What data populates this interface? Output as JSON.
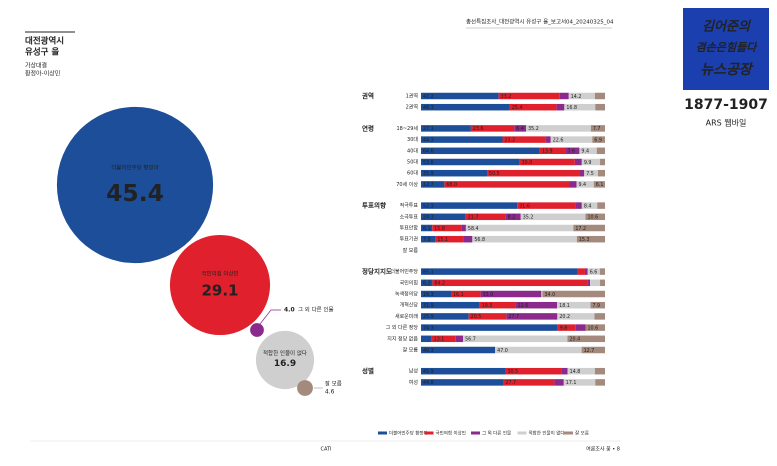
{
  "header": {
    "report": "총선특집조사_대전광역시 유성구 을_보고서",
    "code": "04_20240325_04"
  },
  "logo": {
    "lines": [
      "김어준의",
      "겸손은힘들다",
      "뉴스공장"
    ],
    "phone": "1877-1907",
    "method": "ARS 웹바일"
  },
  "footer": {
    "center": "CATI",
    "page": "여론조사 꽃 • 8"
  },
  "chart_data": [
    {
      "type": "bubble",
      "title": [
        "대전광역시",
        "유성구 을"
      ],
      "subtitle": [
        "가상대결",
        "황정아-이상민"
      ],
      "categories": [
        "더불어민주당 황정아",
        "국민의힘 이상민",
        "그 외 다른 인물",
        "적합한 인물이 없다",
        "잘 모름"
      ],
      "values": [
        45.4,
        29.1,
        4.0,
        16.9,
        4.6
      ],
      "value_labels": [
        "45.4",
        "29.1",
        "4.0",
        "16.9",
        "4.6"
      ],
      "colors": [
        "#1c4e9a",
        "#e0202c",
        "#8b2a8c",
        "#cfcfcf",
        "#a48a7c"
      ]
    },
    {
      "type": "stacked-bar",
      "xlim": [
        0,
        100
      ],
      "groups": [
        {
          "name": "권역",
          "categories": [
            "1권역",
            "2권역"
          ]
        },
        {
          "name": "연령",
          "categories": [
            "18~29세",
            "30대",
            "40대",
            "50대",
            "60대",
            "70세 이상"
          ]
        },
        {
          "name": "투표의향",
          "categories": [
            "적극투표",
            "소극투표",
            "투표안함",
            "투표기권",
            "잘 모름"
          ]
        },
        {
          "name": "정당지지도",
          "categories": [
            "더불어민주당",
            "국민의힘",
            "녹색정의당",
            "개혁신당",
            "새로운미래",
            "그 외 다른 정당",
            "지지 정당 없음",
            "잘 모름"
          ]
        },
        {
          "name": "성별",
          "categories": [
            "남성",
            "여성"
          ]
        }
      ],
      "series": [
        {
          "name": "더불어민주당 황정아",
          "color": "#1c4e9a",
          "values": [
            42.2,
            48.3,
            27.1,
            44.3,
            64.6,
            53.6,
            35.9,
            12.7,
            52.3,
            24.3,
            6.1,
            7.8,
            null,
            85.1,
            6.2,
            16.3,
            31.9,
            25.9,
            74.3,
            5.8,
            40.3,
            45.9,
            44.8
          ],
          "value_labels": [
            "42.2",
            "48.3",
            "27.1",
            "44.3",
            "64.6",
            "53.6",
            "35.9",
            "12.7",
            "52.3",
            "24.3",
            "6.1",
            "7.8",
            null,
            "85.1",
            "6.2",
            "16.3",
            "31.9",
            "25.9",
            "74.3",
            "5.8",
            "40.3",
            "45.9",
            "44.8"
          ]
        },
        {
          "name": "국민의힘 이상민",
          "color": "#e0202c",
          "values": [
            33.2,
            25.4,
            23.6,
            23.2,
            13.9,
            30.0,
            50.5,
            68.0,
            31.6,
            21.7,
            15.8,
            15.1,
            null,
            4.0,
            84.2,
            16.1,
            19.5,
            20.5,
            9.8,
            13.1,
            null,
            30.5,
            27.7
          ],
          "value_labels": [
            "33.2",
            "25.4",
            "23.6",
            "23.2",
            "13.9",
            "30.0",
            "50.5",
            "68.0",
            "31.6",
            "21.7",
            "15.8",
            "15.1",
            null,
            "4.0",
            "84.2",
            "16.1",
            "19.5",
            "20.5",
            "9.8",
            "13.1",
            null,
            "30.5",
            "27.7"
          ]
        },
        {
          "name": "그 외 다른 인물",
          "color": "#8b2a8c",
          "values": [
            4.9,
            4.2,
            6.4,
            3.0,
            7.6,
            3.8,
            2.3,
            3.8,
            3.5,
            8.2,
            2.5,
            5.0,
            null,
            1.5,
            1.5,
            33.0,
            22.6,
            27.7,
            5.3,
            4.0,
            null,
            3.3,
            5.1
          ],
          "value_labels": [
            "4.9",
            "4.2",
            "6.4",
            "3.0",
            "7.6",
            "3.8",
            "2.3",
            "3.8",
            "3.5",
            "8.2",
            "2.5",
            "5.0",
            null,
            "1.5",
            "1.5",
            "33.0",
            "22.6",
            "27.7",
            "5.3",
            "4.0",
            null,
            "3.3",
            "5.1"
          ]
        },
        {
          "name": "적합한 인물이 없다",
          "color": "#cfcfcf",
          "values": [
            14.2,
            16.8,
            35.2,
            22.6,
            9.4,
            9.9,
            7.5,
            9.4,
            8.4,
            35.2,
            58.4,
            56.8,
            null,
            6.6,
            5.4,
            0.6,
            18.1,
            20.2,
            null,
            56.7,
            47.0,
            14.8,
            17.1
          ],
          "value_labels": [
            "14.2",
            "16.8",
            "35.2",
            "22.6",
            "9.4",
            "9.9",
            "7.5",
            "9.4",
            "8.4",
            "35.2",
            "58.4",
            "56.8",
            null,
            "6.6",
            "5.4",
            "0.6",
            "18.1",
            "20.2",
            null,
            "56.7",
            "47.0",
            "14.8",
            "17.1"
          ]
        },
        {
          "name": "잘 모름",
          "color": "#a48a7c",
          "values": [
            5.5,
            5.3,
            7.7,
            6.9,
            4.5,
            2.7,
            3.8,
            6.1,
            4.2,
            10.6,
            17.2,
            15.3,
            null,
            2.8,
            2.7,
            34.0,
            7.9,
            5.7,
            10.6,
            20.4,
            12.7,
            5.5,
            5.3
          ],
          "value_labels": [
            "5.5",
            "5.3",
            "7.7",
            "6.9",
            "4.5",
            "2.7",
            "3.8",
            "6.1",
            "4.2",
            "10.6",
            "17.2",
            "15.3",
            null,
            "2.8",
            "2.7",
            "34.0",
            "7.9",
            "5.7",
            "10.6",
            "20.4",
            "12.7",
            "5.5",
            "5.3"
          ]
        }
      ]
    }
  ]
}
